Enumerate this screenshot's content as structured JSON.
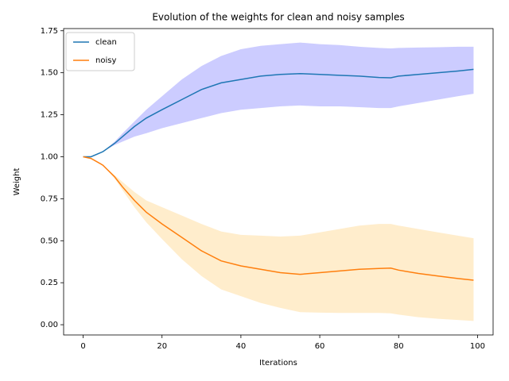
{
  "chart_data": {
    "type": "line",
    "title": "Evolution of the weights for clean and noisy samples",
    "x_label": "Iterations",
    "y_label": "Weight",
    "x": [
      0,
      2,
      5,
      8,
      10,
      13,
      16,
      20,
      25,
      30,
      35,
      40,
      45,
      50,
      55,
      60,
      65,
      70,
      75,
      78,
      80,
      85,
      90,
      95,
      99
    ],
    "series": [
      {
        "name": "clean",
        "color": "#1f77b4",
        "band_color": "#0000ff",
        "values": [
          1.0,
          1.0,
          1.03,
          1.08,
          1.12,
          1.18,
          1.23,
          1.28,
          1.34,
          1.4,
          1.44,
          1.46,
          1.48,
          1.49,
          1.495,
          1.49,
          1.485,
          1.48,
          1.472,
          1.47,
          1.48,
          1.49,
          1.5,
          1.51,
          1.52
        ],
        "lower": [
          1.0,
          1.0,
          1.03,
          1.07,
          1.09,
          1.12,
          1.14,
          1.17,
          1.2,
          1.23,
          1.26,
          1.28,
          1.29,
          1.3,
          1.305,
          1.3,
          1.3,
          1.295,
          1.29,
          1.29,
          1.3,
          1.32,
          1.34,
          1.36,
          1.375
        ],
        "upper": [
          1.0,
          1.0,
          1.03,
          1.09,
          1.14,
          1.21,
          1.28,
          1.36,
          1.46,
          1.54,
          1.6,
          1.64,
          1.66,
          1.67,
          1.68,
          1.67,
          1.665,
          1.655,
          1.648,
          1.645,
          1.648,
          1.65,
          1.652,
          1.655,
          1.655
        ]
      },
      {
        "name": "noisy",
        "color": "#ff7f0e",
        "band_color": "#ffa500",
        "values": [
          1.0,
          0.99,
          0.95,
          0.88,
          0.82,
          0.74,
          0.67,
          0.6,
          0.52,
          0.44,
          0.38,
          0.35,
          0.33,
          0.31,
          0.3,
          0.31,
          0.32,
          0.33,
          0.335,
          0.337,
          0.325,
          0.305,
          0.29,
          0.275,
          0.265
        ],
        "lower": [
          1.0,
          0.99,
          0.95,
          0.87,
          0.8,
          0.7,
          0.61,
          0.51,
          0.39,
          0.29,
          0.21,
          0.17,
          0.13,
          0.1,
          0.075,
          0.072,
          0.07,
          0.07,
          0.07,
          0.068,
          0.06,
          0.045,
          0.035,
          0.028,
          0.022
        ],
        "upper": [
          1.0,
          0.99,
          0.95,
          0.89,
          0.85,
          0.79,
          0.74,
          0.7,
          0.65,
          0.6,
          0.555,
          0.535,
          0.53,
          0.525,
          0.53,
          0.55,
          0.57,
          0.59,
          0.6,
          0.6,
          0.59,
          0.57,
          0.55,
          0.53,
          0.515
        ]
      }
    ],
    "xlim": [
      -4.95,
      103.95
    ],
    "xticks": [
      0,
      20,
      40,
      60,
      80,
      100
    ],
    "ylim": [
      -0.061,
      1.763
    ],
    "yticks": [
      {
        "value": 0,
        "label": "0.00"
      },
      {
        "value": 0.25,
        "label": "0.25"
      },
      {
        "value": 0.5,
        "label": "0.50"
      },
      {
        "value": 0.75,
        "label": "0.75"
      },
      {
        "value": 1,
        "label": "1.00"
      },
      {
        "value": 1.25,
        "label": "1.25"
      },
      {
        "value": 1.5,
        "label": "1.50"
      },
      {
        "value": 1.75,
        "label": "1.75"
      }
    ],
    "legend": "upper left",
    "band_opacity": 0.2
  }
}
